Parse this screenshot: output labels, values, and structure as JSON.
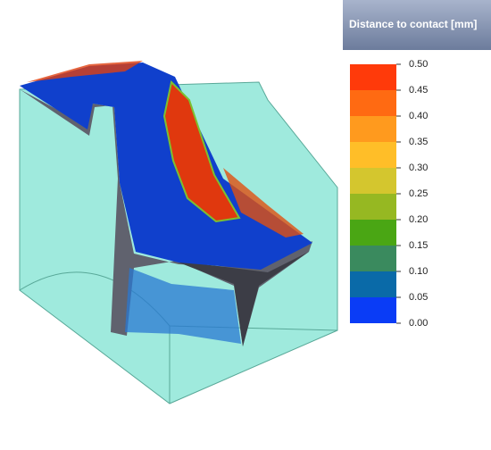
{
  "legend": {
    "title": "Distance to contact  [mm]",
    "ticks": [
      {
        "value": 0.5,
        "label": "0.50"
      },
      {
        "value": 0.45,
        "label": "0.45"
      },
      {
        "value": 0.4,
        "label": "0.40"
      },
      {
        "value": 0.35,
        "label": "0.35"
      },
      {
        "value": 0.3,
        "label": "0.30"
      },
      {
        "value": 0.25,
        "label": "0.25"
      },
      {
        "value": 0.2,
        "label": "0.20"
      },
      {
        "value": 0.15,
        "label": "0.15"
      },
      {
        "value": 0.1,
        "label": "0.10"
      },
      {
        "value": 0.05,
        "label": "0.05"
      },
      {
        "value": 0,
        "label": "0.00"
      }
    ],
    "colors": [
      "#ff3a0a",
      "#ff6a12",
      "#ff9a1e",
      "#ffbe28",
      "#d4c62e",
      "#96b822",
      "#4aa614",
      "#3a8a5e",
      "#0a6aa8",
      "#0a3cf6"
    ]
  }
}
